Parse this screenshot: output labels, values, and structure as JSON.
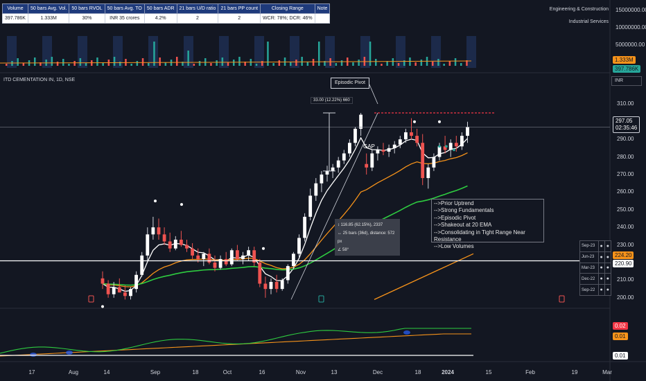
{
  "stats_table": {
    "headers": [
      "Volume",
      "50 bars Avg. Vol.",
      "50 bars RVOL",
      "50 bars Avg. TO",
      "50 bars ADR",
      "21 bars U/D ratio",
      "21 bars PP count",
      "Closing Range",
      "Note"
    ],
    "values": [
      "397.786K",
      "1.333M",
      "30%",
      "INR 35  crores",
      "4.2%",
      "2",
      "2",
      "WCR: 78%; DCR: 46%",
      ""
    ]
  },
  "sector": {
    "industry": "Engineering & Construction",
    "sub_industry": "Industrial Services"
  },
  "symbol": {
    "title": "ITD CEMENTATION IN, 1D, NSE",
    "currency": "INR"
  },
  "volume_axis": {
    "ticks": [
      "15000000.00",
      "10000000.00",
      "5000000.00"
    ],
    "avg_tag": "1.333M",
    "last_tag": "397.786K"
  },
  "price_axis": {
    "ticks": [
      "310.00",
      "300.00",
      "290.00",
      "280.00",
      "270.00",
      "260.00",
      "250.00",
      "240.00",
      "230.00",
      "220.00",
      "210.00",
      "200.00"
    ]
  },
  "price_tags": {
    "last_price": "297.05",
    "countdown": "02:35:46",
    "line_a": "224.20",
    "line_b": "220.90"
  },
  "indicator_tags": {
    "red": "0.02",
    "orange": "0.01",
    "white": "0.01"
  },
  "annotations": {
    "episodic_pivot": "Episodic Pivot",
    "move_label": "33.00 (12.22%) 660",
    "gap": "GAP",
    "measure": [
      "116.85 (62.15%), 2337",
      "25 bars (36d), distance: 572 px",
      "58°"
    ],
    "notes": [
      "-->Prior Uptrend",
      "-->Strong Fundamentals",
      "-->Episodic Pivot",
      "-->Shakeout at 20 EMA",
      "-->Consolidating in Tight Range Near Resistance",
      "-->Low Volumes"
    ]
  },
  "quarters": [
    "Sep-23",
    "Jun-23",
    "Mar-23",
    "Dec-22",
    "Sep-22"
  ],
  "time_axis": [
    "17",
    "Aug",
    "14",
    "Sep",
    "18",
    "Oct",
    "16",
    "Nov",
    "13",
    "Dec",
    "18",
    "2024",
    "15",
    "Feb",
    "19",
    "Mar"
  ],
  "colors": {
    "up": "#26a69a",
    "down": "#ef5350",
    "ema_fast": "#ffffff",
    "ema_mid": "#f7931a",
    "ema_slow": "#2ecc40",
    "resistance": "#f23645",
    "background": "#131722"
  },
  "chart_data": {
    "type": "candlestick",
    "ylim": [
      196,
      318
    ],
    "resistance": 305,
    "candles": [
      [
        211,
        215,
        205,
        208
      ],
      [
        208,
        210,
        200,
        202
      ],
      [
        202,
        209,
        200,
        206
      ],
      [
        206,
        211,
        203,
        203
      ],
      [
        203,
        207,
        199,
        201
      ],
      [
        201,
        206,
        199,
        205
      ],
      [
        205,
        215,
        203,
        213
      ],
      [
        213,
        226,
        212,
        224
      ],
      [
        224,
        240,
        220,
        236
      ],
      [
        236,
        246,
        233,
        240
      ],
      [
        240,
        245,
        233,
        236
      ],
      [
        236,
        240,
        230,
        232
      ],
      [
        232,
        237,
        226,
        228
      ],
      [
        228,
        235,
        227,
        233
      ],
      [
        233,
        238,
        229,
        230
      ],
      [
        230,
        233,
        226,
        228
      ],
      [
        228,
        231,
        222,
        224
      ],
      [
        224,
        228,
        220,
        222
      ],
      [
        222,
        226,
        218,
        225
      ],
      [
        225,
        228,
        219,
        220
      ],
      [
        220,
        224,
        215,
        217
      ],
      [
        217,
        224,
        216,
        222
      ],
      [
        222,
        226,
        218,
        219
      ],
      [
        219,
        228,
        218,
        227
      ],
      [
        227,
        230,
        221,
        222
      ],
      [
        222,
        226,
        219,
        224
      ],
      [
        224,
        229,
        221,
        227
      ],
      [
        227,
        229,
        218,
        220
      ],
      [
        220,
        222,
        206,
        208
      ],
      [
        208,
        212,
        200,
        205
      ],
      [
        205,
        211,
        202,
        209
      ],
      [
        209,
        213,
        203,
        205
      ],
      [
        205,
        211,
        204,
        210
      ],
      [
        210,
        219,
        208,
        218
      ],
      [
        218,
        226,
        216,
        225
      ],
      [
        225,
        236,
        223,
        234
      ],
      [
        234,
        248,
        232,
        246
      ],
      [
        246,
        262,
        244,
        258
      ],
      [
        258,
        268,
        255,
        265
      ],
      [
        265,
        272,
        260,
        270
      ],
      [
        270,
        275,
        266,
        272
      ],
      [
        272,
        276,
        268,
        274
      ],
      [
        274,
        280,
        271,
        278
      ],
      [
        278,
        284,
        276,
        282
      ],
      [
        282,
        290,
        280,
        288
      ],
      [
        288,
        297,
        286,
        296
      ],
      [
        296,
        305,
        292,
        304
      ],
      [
        276,
        282,
        270,
        274
      ],
      [
        274,
        284,
        272,
        282
      ],
      [
        282,
        286,
        278,
        284
      ],
      [
        284,
        288,
        281,
        283
      ],
      [
        283,
        287,
        280,
        285
      ],
      [
        285,
        289,
        282,
        287
      ],
      [
        287,
        292,
        285,
        290
      ],
      [
        290,
        296,
        288,
        294
      ],
      [
        294,
        302,
        290,
        292
      ],
      [
        292,
        296,
        286,
        288
      ],
      [
        288,
        293,
        264,
        268
      ],
      [
        268,
        276,
        262,
        274
      ],
      [
        274,
        282,
        272,
        280
      ],
      [
        280,
        288,
        278,
        286
      ],
      [
        286,
        292,
        282,
        284
      ],
      [
        284,
        290,
        280,
        288
      ],
      [
        288,
        292,
        283,
        286
      ],
      [
        286,
        294,
        284,
        292
      ],
      [
        292,
        300,
        288,
        297
      ]
    ]
  }
}
